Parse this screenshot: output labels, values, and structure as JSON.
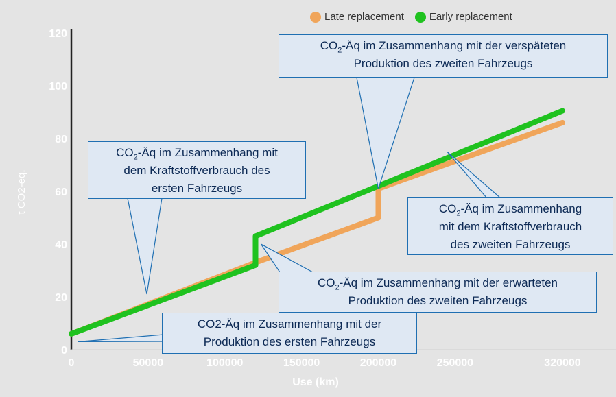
{
  "chart_data": {
    "type": "line",
    "title": "",
    "xlabel": "Use (km)",
    "ylabel": "t CO2-eq.",
    "xlim": [
      0,
      320000
    ],
    "ylim": [
      0,
      120
    ],
    "x_ticks": [
      0,
      50000,
      100000,
      150000,
      200000,
      250000,
      320000
    ],
    "y_ticks": [
      0,
      20,
      40,
      60,
      80,
      100,
      120
    ],
    "grid": false,
    "legend_position": "top-right",
    "series": [
      {
        "name": "Late replacement",
        "color": "#f0a55a",
        "points": [
          [
            0,
            6
          ],
          [
            120000,
            33
          ],
          [
            200000,
            50
          ],
          [
            200000,
            61
          ],
          [
            320000,
            86
          ]
        ]
      },
      {
        "name": "Early replacement",
        "color": "#1fc21f",
        "points": [
          [
            0,
            6
          ],
          [
            120000,
            32
          ],
          [
            120000,
            43
          ],
          [
            200000,
            62
          ],
          [
            320000,
            90.5
          ]
        ]
      }
    ],
    "annotations": [
      {
        "id": "a1",
        "pre": "CO",
        "sub": "2",
        "post": "-Äq im Zusammenhang mit der verspäteten",
        "line2": "Produktion des zweiten Fahrzeugs"
      },
      {
        "id": "a2",
        "pre": "CO",
        "sub": "2",
        "post": "-Äq im Zusammenhang mit",
        "line2": "dem Kraftstoffverbrauch des",
        "line3": "ersten Fahrzeugs"
      },
      {
        "id": "a3",
        "pre": "CO",
        "sub": "2",
        "post": "-Äq im Zusammenhang",
        "line2": "mit dem Kraftstoffverbrauch",
        "line3": "des zweiten Fahrzeugs"
      },
      {
        "id": "a4",
        "pre": "CO",
        "sub": "2",
        "post": "-Äq im Zusammenhang mit der erwarteten",
        "line2": "Produktion des zweiten Fahrzeugs"
      },
      {
        "id": "a5",
        "pre": "CO2-Äq im Zusammenhang mit der",
        "sub": "",
        "post": "",
        "line2": "Produktion des ersten Fahrzeugs"
      }
    ]
  }
}
